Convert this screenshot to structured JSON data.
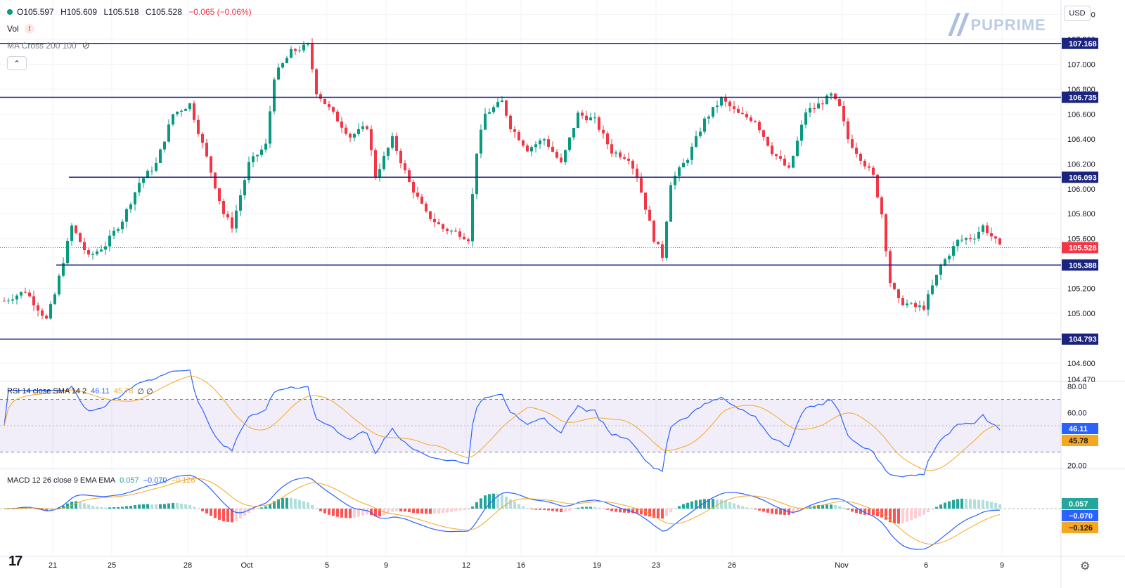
{
  "header": {
    "open_label": "O105.597",
    "high_label": "H105.609",
    "low_label": "L105.518",
    "close_label": "C105.528",
    "change_label": "−0.065 (−0.06%)",
    "vol_label": "Vol",
    "ma_label": "MA Cross 200 100",
    "currency": "USD",
    "logo_text": "PUPRIME"
  },
  "colors": {
    "up": "#089981",
    "down": "#f23645",
    "level_line": "#1a237e",
    "rsi_line": "#2962ff",
    "rsi_sma": "#f5a623",
    "macd_line": "#2962ff",
    "signal_line": "#f5a623",
    "rsi_band": "#7e57c2"
  },
  "rsi_legend": {
    "label": "RSI 14 close SMA 14 2",
    "rsi": "46.11",
    "sma": "45.78",
    "extra": "∅ ∅"
  },
  "macd_legend": {
    "label": "MACD 12 26 close 9 EMA EMA",
    "hist": "0.057",
    "macd": "−0.070",
    "signal": "−0.126"
  },
  "chart_data": {
    "type": "candlestick",
    "x_ticks": [
      "21",
      "25",
      "28",
      "Oct",
      "5",
      "9",
      "12",
      "16",
      "19",
      "23",
      "26",
      "Nov",
      "6",
      "9"
    ],
    "price_axis_ticks": [
      "107.400",
      "107.200",
      "107.000",
      "106.800",
      "106.600",
      "106.400",
      "106.200",
      "106.000",
      "105.800",
      "105.600",
      "105.200",
      "105.000",
      "104.800",
      "104.600",
      "104.470"
    ],
    "ylim": [
      104.47,
      107.46
    ],
    "horizontal_levels": [
      107.168,
      106.735,
      106.093,
      105.388,
      104.793
    ],
    "level_labels": [
      "107.168",
      "106.735",
      "106.093",
      "105.388",
      "104.793"
    ],
    "last_price": 105.528,
    "last_price_label": "105.528",
    "price_anchors": [
      [
        0,
        105.1
      ],
      [
        5,
        105.18
      ],
      [
        10,
        104.95
      ],
      [
        12,
        105.15
      ],
      [
        16,
        105.7
      ],
      [
        20,
        105.45
      ],
      [
        24,
        105.55
      ],
      [
        28,
        105.75
      ],
      [
        32,
        106.05
      ],
      [
        36,
        106.2
      ],
      [
        40,
        106.6
      ],
      [
        44,
        106.68
      ],
      [
        48,
        106.25
      ],
      [
        52,
        105.8
      ],
      [
        54,
        105.7
      ],
      [
        58,
        106.2
      ],
      [
        62,
        106.35
      ],
      [
        64,
        106.9
      ],
      [
        68,
        107.1
      ],
      [
        72,
        107.15
      ],
      [
        74,
        106.78
      ],
      [
        78,
        106.6
      ],
      [
        82,
        106.42
      ],
      [
        86,
        106.5
      ],
      [
        88,
        106.1
      ],
      [
        92,
        106.4
      ],
      [
        96,
        106.05
      ],
      [
        100,
        105.8
      ],
      [
        104,
        105.68
      ],
      [
        108,
        105.64
      ],
      [
        110,
        105.6
      ],
      [
        112,
        106.3
      ],
      [
        114,
        106.6
      ],
      [
        118,
        106.7
      ],
      [
        120,
        106.5
      ],
      [
        124,
        106.32
      ],
      [
        128,
        106.4
      ],
      [
        132,
        106.2
      ],
      [
        136,
        106.6
      ],
      [
        140,
        106.55
      ],
      [
        144,
        106.3
      ],
      [
        148,
        106.25
      ],
      [
        150,
        106.1
      ],
      [
        154,
        105.6
      ],
      [
        156,
        105.46
      ],
      [
        158,
        106.05
      ],
      [
        162,
        106.25
      ],
      [
        166,
        106.55
      ],
      [
        170,
        106.72
      ],
      [
        174,
        106.6
      ],
      [
        178,
        106.55
      ],
      [
        182,
        106.3
      ],
      [
        186,
        106.15
      ],
      [
        188,
        106.38
      ],
      [
        190,
        106.62
      ],
      [
        192,
        106.65
      ],
      [
        196,
        106.75
      ],
      [
        198,
        106.65
      ],
      [
        200,
        106.4
      ],
      [
        202,
        106.3
      ],
      [
        206,
        106.1
      ],
      [
        208,
        105.8
      ],
      [
        210,
        105.25
      ],
      [
        212,
        105.1
      ],
      [
        216,
        105.05
      ],
      [
        218,
        105.05
      ],
      [
        222,
        105.38
      ],
      [
        226,
        105.58
      ],
      [
        230,
        105.62
      ],
      [
        232,
        105.7
      ],
      [
        235,
        105.58
      ],
      [
        236,
        105.53
      ]
    ],
    "rsi_axis_ticks": [
      "80.00",
      "60.00",
      "20.00"
    ],
    "rsi_ylim": [
      18,
      82
    ],
    "rsi_bands": [
      70,
      30
    ],
    "rsi_last_labels": [
      "46.11",
      "45.78"
    ],
    "macd_last_labels": [
      "0.057",
      "−0.070",
      "−0.126"
    ]
  }
}
